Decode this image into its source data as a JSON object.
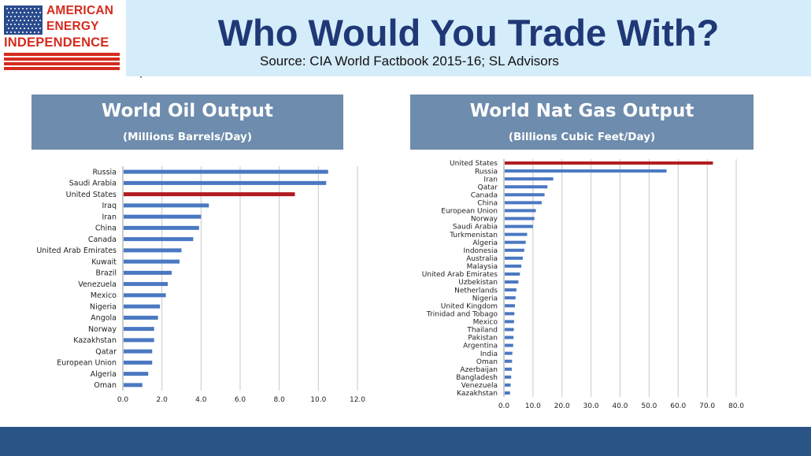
{
  "brand": {
    "line1": "AMERICAN",
    "line2": "ENERGY",
    "line3": "INDEPENDENCE",
    "flag_icon": "us-flag-icon",
    "red": "#d52b1e",
    "blue": "#2a4b8d"
  },
  "header": {
    "title": "Who Would You Trade With?",
    "source": "Source: CIA World Factbook 2015-16; SL Advisors"
  },
  "chart_data": [
    {
      "type": "bar",
      "orientation": "horizontal",
      "title": "World Oil Output",
      "subtitle": "(Millions Barrels/Day)",
      "categories": [
        "Russia",
        "Saudi Arabia",
        "United States",
        "Iraq",
        "Iran",
        "China",
        "Canada",
        "United Arab Emirates",
        "Kuwait",
        "Brazil",
        "Venezuela",
        "Mexico",
        "Nigeria",
        "Angola",
        "Norway",
        "Kazakhstan",
        "Qatar",
        "European Union",
        "Algeria",
        "Oman"
      ],
      "values": [
        10.5,
        10.4,
        8.8,
        4.4,
        4.0,
        3.9,
        3.6,
        3.0,
        2.9,
        2.5,
        2.3,
        2.2,
        1.9,
        1.8,
        1.6,
        1.6,
        1.5,
        1.5,
        1.3,
        1.0
      ],
      "highlight": "United States",
      "xlim": [
        0,
        12
      ],
      "ticks": [
        "0.0",
        "2.0",
        "4.0",
        "6.0",
        "8.0",
        "10.0",
        "12.0"
      ],
      "grid": true,
      "bar_color": "#4a78c2",
      "highlight_color": "#b01c20"
    },
    {
      "type": "bar",
      "orientation": "horizontal",
      "title": "World Nat Gas Output",
      "subtitle": "(Billions Cubic Feet/Day)",
      "categories": [
        "United States",
        "Russia",
        "Iran",
        "Qatar",
        "Canada",
        "China",
        "European Union",
        "Norway",
        "Saudi Arabia",
        "Turkmenistan",
        "Algeria",
        "Indonesia",
        "Australia",
        "Malaysia",
        "United Arab Emirates",
        "Uzbekistan",
        "Netherlands",
        "Nigeria",
        "United Kingdom",
        "Trinidad and Tobago",
        "Mexico",
        "Thailand",
        "Pakistan",
        "Argentina",
        "India",
        "Oman",
        "Azerbaijan",
        "Bangladesh",
        "Venezuela",
        "Kazakhstan"
      ],
      "values": [
        72,
        56,
        17,
        15,
        14,
        13,
        11,
        10.5,
        10,
        8,
        7.5,
        7,
        6.5,
        6,
        5.5,
        5,
        4.3,
        4,
        3.8,
        3.6,
        3.5,
        3.4,
        3.3,
        3.2,
        2.9,
        2.8,
        2.7,
        2.5,
        2.3,
        2.1
      ],
      "highlight": "United States",
      "xlim": [
        0,
        80
      ],
      "ticks": [
        "0.0",
        "10.0",
        "20.0",
        "30.0",
        "40.0",
        "50.0",
        "60.0",
        "70.0",
        "80.0"
      ],
      "grid": true,
      "bar_color": "#4a78c2",
      "highlight_color": "#b01c20"
    }
  ]
}
